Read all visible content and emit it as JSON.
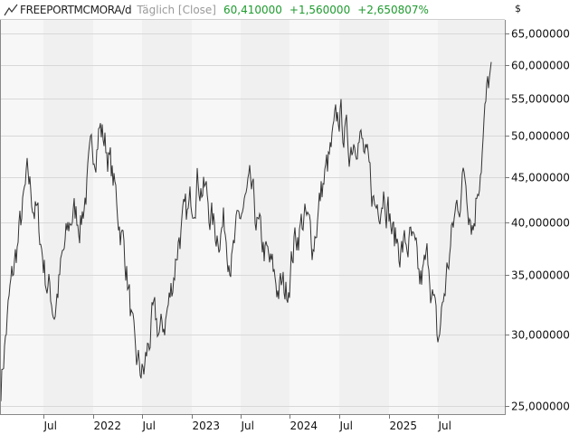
{
  "header": {
    "symbol": "FREEPORTMCMORA/d",
    "mode": "Täglich [Close]",
    "last": "60,410000",
    "change": "+1,560000",
    "change_pct": "+2,650807%",
    "icon": "line-chart-icon",
    "positive_color": "#1e9b2e"
  },
  "y_axis": {
    "currency": "$",
    "scale": "log",
    "ticks": [
      "65,000000",
      "60,000000",
      "55,000000",
      "50,000000",
      "45,000000",
      "40,000000",
      "35,000000",
      "30,000000",
      "25,000000"
    ]
  },
  "x_axis": {
    "ticks": [
      "Jul",
      "2022",
      "Jul",
      "2023",
      "Jul",
      "2024",
      "Jul",
      "2025",
      "Jul"
    ]
  },
  "chart_data": {
    "type": "line",
    "title": "FREEPORTMCMORA/d Täglich [Close]",
    "xlabel": "",
    "ylabel": "$",
    "yscale": "log",
    "ylim": [
      24.5,
      67
    ],
    "grid": true,
    "x_tick_labels": [
      "Jul 2021",
      "2022",
      "Jul 2022",
      "2023",
      "Jul 2023",
      "2024",
      "Jul 2024",
      "2025",
      "Jul 2025"
    ],
    "y_tick_values": [
      25,
      30,
      35,
      40,
      45,
      50,
      55,
      60,
      65
    ],
    "series": [
      {
        "name": "FREEPORTMCMORA Close",
        "x": [
          "2021-03",
          "2021-04",
          "2021-05",
          "2021-06",
          "2021-07",
          "2021-08",
          "2021-09",
          "2021-10",
          "2021-11",
          "2021-12",
          "2022-01",
          "2022-02",
          "2022-03",
          "2022-04",
          "2022-05",
          "2022-06",
          "2022-07",
          "2022-08",
          "2022-09",
          "2022-10",
          "2022-11",
          "2022-12",
          "2023-01",
          "2023-02",
          "2023-03",
          "2023-04",
          "2023-05",
          "2023-06",
          "2023-07",
          "2023-08",
          "2023-09",
          "2023-10",
          "2023-11",
          "2023-12",
          "2024-01",
          "2024-02",
          "2024-03",
          "2024-04",
          "2024-05",
          "2024-06",
          "2024-07",
          "2024-08",
          "2024-09",
          "2024-10",
          "2024-11",
          "2024-12",
          "2025-01",
          "2025-02",
          "2025-03",
          "2025-04",
          "2025-05",
          "2025-06",
          "2025-07",
          "2025-08",
          "2025-09",
          "2025-10"
        ],
        "values": [
          26.5,
          33.0,
          38.5,
          44.5,
          41.0,
          35.0,
          32.0,
          36.5,
          41.0,
          40.5,
          46.0,
          51.5,
          48.0,
          42.0,
          36.5,
          28.0,
          27.0,
          31.0,
          30.0,
          33.0,
          39.0,
          40.5,
          45.5,
          43.0,
          39.0,
          40.0,
          36.5,
          41.0,
          43.0,
          38.5,
          36.0,
          34.0,
          33.5,
          38.5,
          40.5,
          38.0,
          43.5,
          47.5,
          53.0,
          48.5,
          51.5,
          46.0,
          41.5,
          44.5,
          38.5,
          37.5,
          38.0,
          34.0,
          36.5,
          29.0,
          35.0,
          41.0,
          45.5,
          40.0,
          49.0,
          60.41
        ]
      }
    ]
  }
}
